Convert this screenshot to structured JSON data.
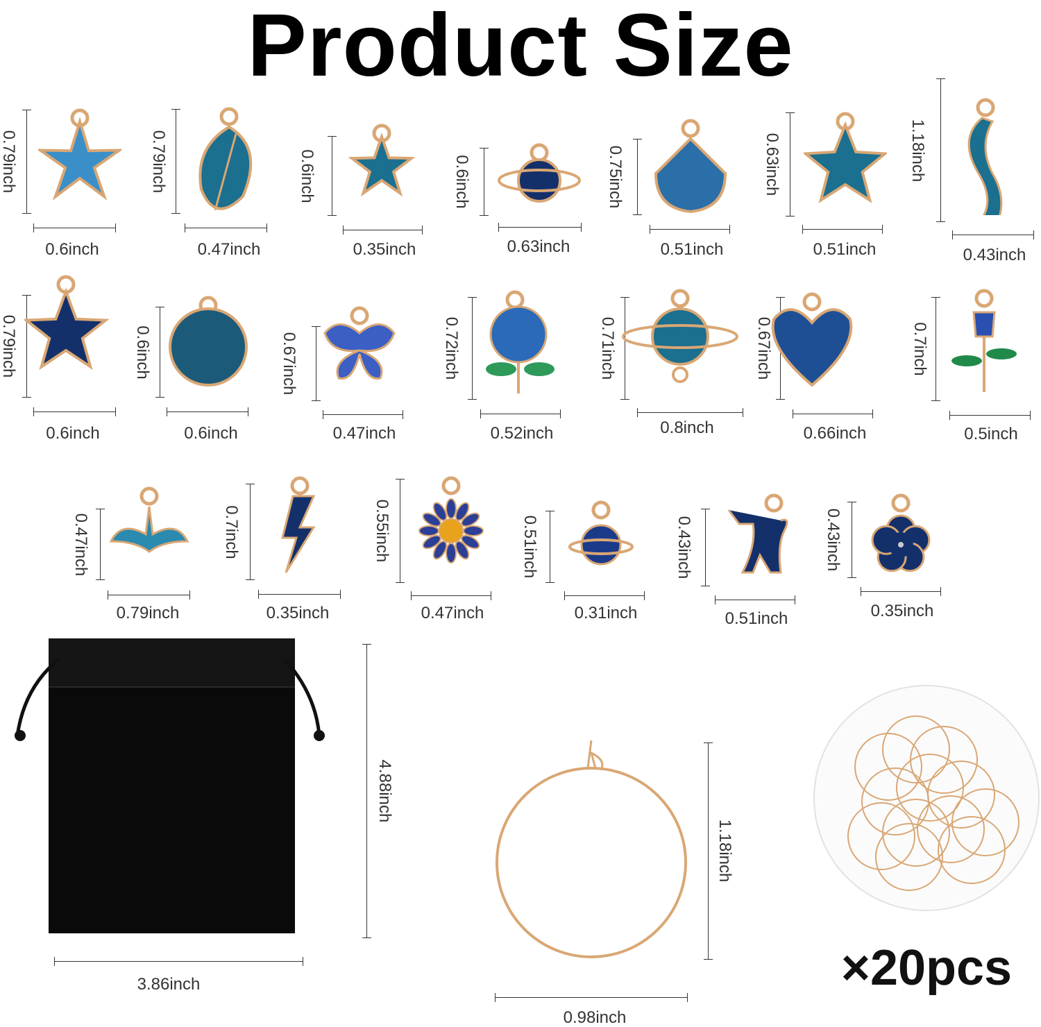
{
  "title": "Product Size",
  "colors": {
    "enamel_blue": "#1f5f9e",
    "navy": "#14306b",
    "teal": "#1b6f8f",
    "gold": "#d9a774",
    "bag": "#0a0a0a"
  },
  "charms": [
    {
      "icon": "starfish-charm-icon",
      "height": "0.79inch",
      "width": "0.6inch"
    },
    {
      "icon": "leaf-charm-icon",
      "height": "0.79inch",
      "width": "0.47inch"
    },
    {
      "icon": "star-charm-icon",
      "height": "0.6inch",
      "width": "0.35inch"
    },
    {
      "icon": "planet-charm-icon",
      "height": "0.6inch",
      "width": "0.63inch"
    },
    {
      "icon": "shell-charm-icon",
      "height": "0.75inch",
      "width": "0.51inch"
    },
    {
      "icon": "starfish-dotted-charm-icon",
      "height": "0.63inch",
      "width": "0.51inch"
    },
    {
      "icon": "mermaid-charm-icon",
      "height": "1.18inch",
      "width": "0.43inch"
    },
    {
      "icon": "star-large-charm-icon",
      "height": "0.79inch",
      "width": "0.6inch"
    },
    {
      "icon": "constellation-moon-charm-icon",
      "height": "0.6inch",
      "width": "0.6inch"
    },
    {
      "icon": "butterfly-charm-icon",
      "height": "0.67inch",
      "width": "0.47inch"
    },
    {
      "icon": "rose-charm-icon",
      "height": "0.72inch",
      "width": "0.52inch"
    },
    {
      "icon": "saturn-connector-charm-icon",
      "height": "0.71inch",
      "width": "0.8inch"
    },
    {
      "icon": "glitter-heart-charm-icon",
      "height": "0.67inch",
      "width": "0.66inch"
    },
    {
      "icon": "tulip-charm-icon",
      "height": "0.7inch",
      "width": "0.5inch"
    },
    {
      "icon": "whale-tail-charm-icon",
      "height": "0.47inch",
      "width": "0.79inch"
    },
    {
      "icon": "lightning-bolt-charm-icon",
      "height": "0.7inch",
      "width": "0.35inch"
    },
    {
      "icon": "daisy-charm-icon",
      "height": "0.55inch",
      "width": "0.47inch"
    },
    {
      "icon": "small-planet-charm-icon",
      "height": "0.51inch",
      "width": "0.31inch"
    },
    {
      "icon": "cat-charm-icon",
      "height": "0.43inch",
      "width": "0.51inch"
    },
    {
      "icon": "flower-charm-icon",
      "height": "0.43inch",
      "width": "0.35inch"
    }
  ],
  "bag": {
    "icon": "velvet-drawstring-bag-icon",
    "height": "4.88inch",
    "width": "3.86inch"
  },
  "ring": {
    "icon": "wine-glass-ring-icon",
    "height": "1.18inch",
    "width": "0.98inch"
  },
  "rings_bundle": {
    "icon": "ring-bundle-photo-icon",
    "count": "×20pcs"
  }
}
